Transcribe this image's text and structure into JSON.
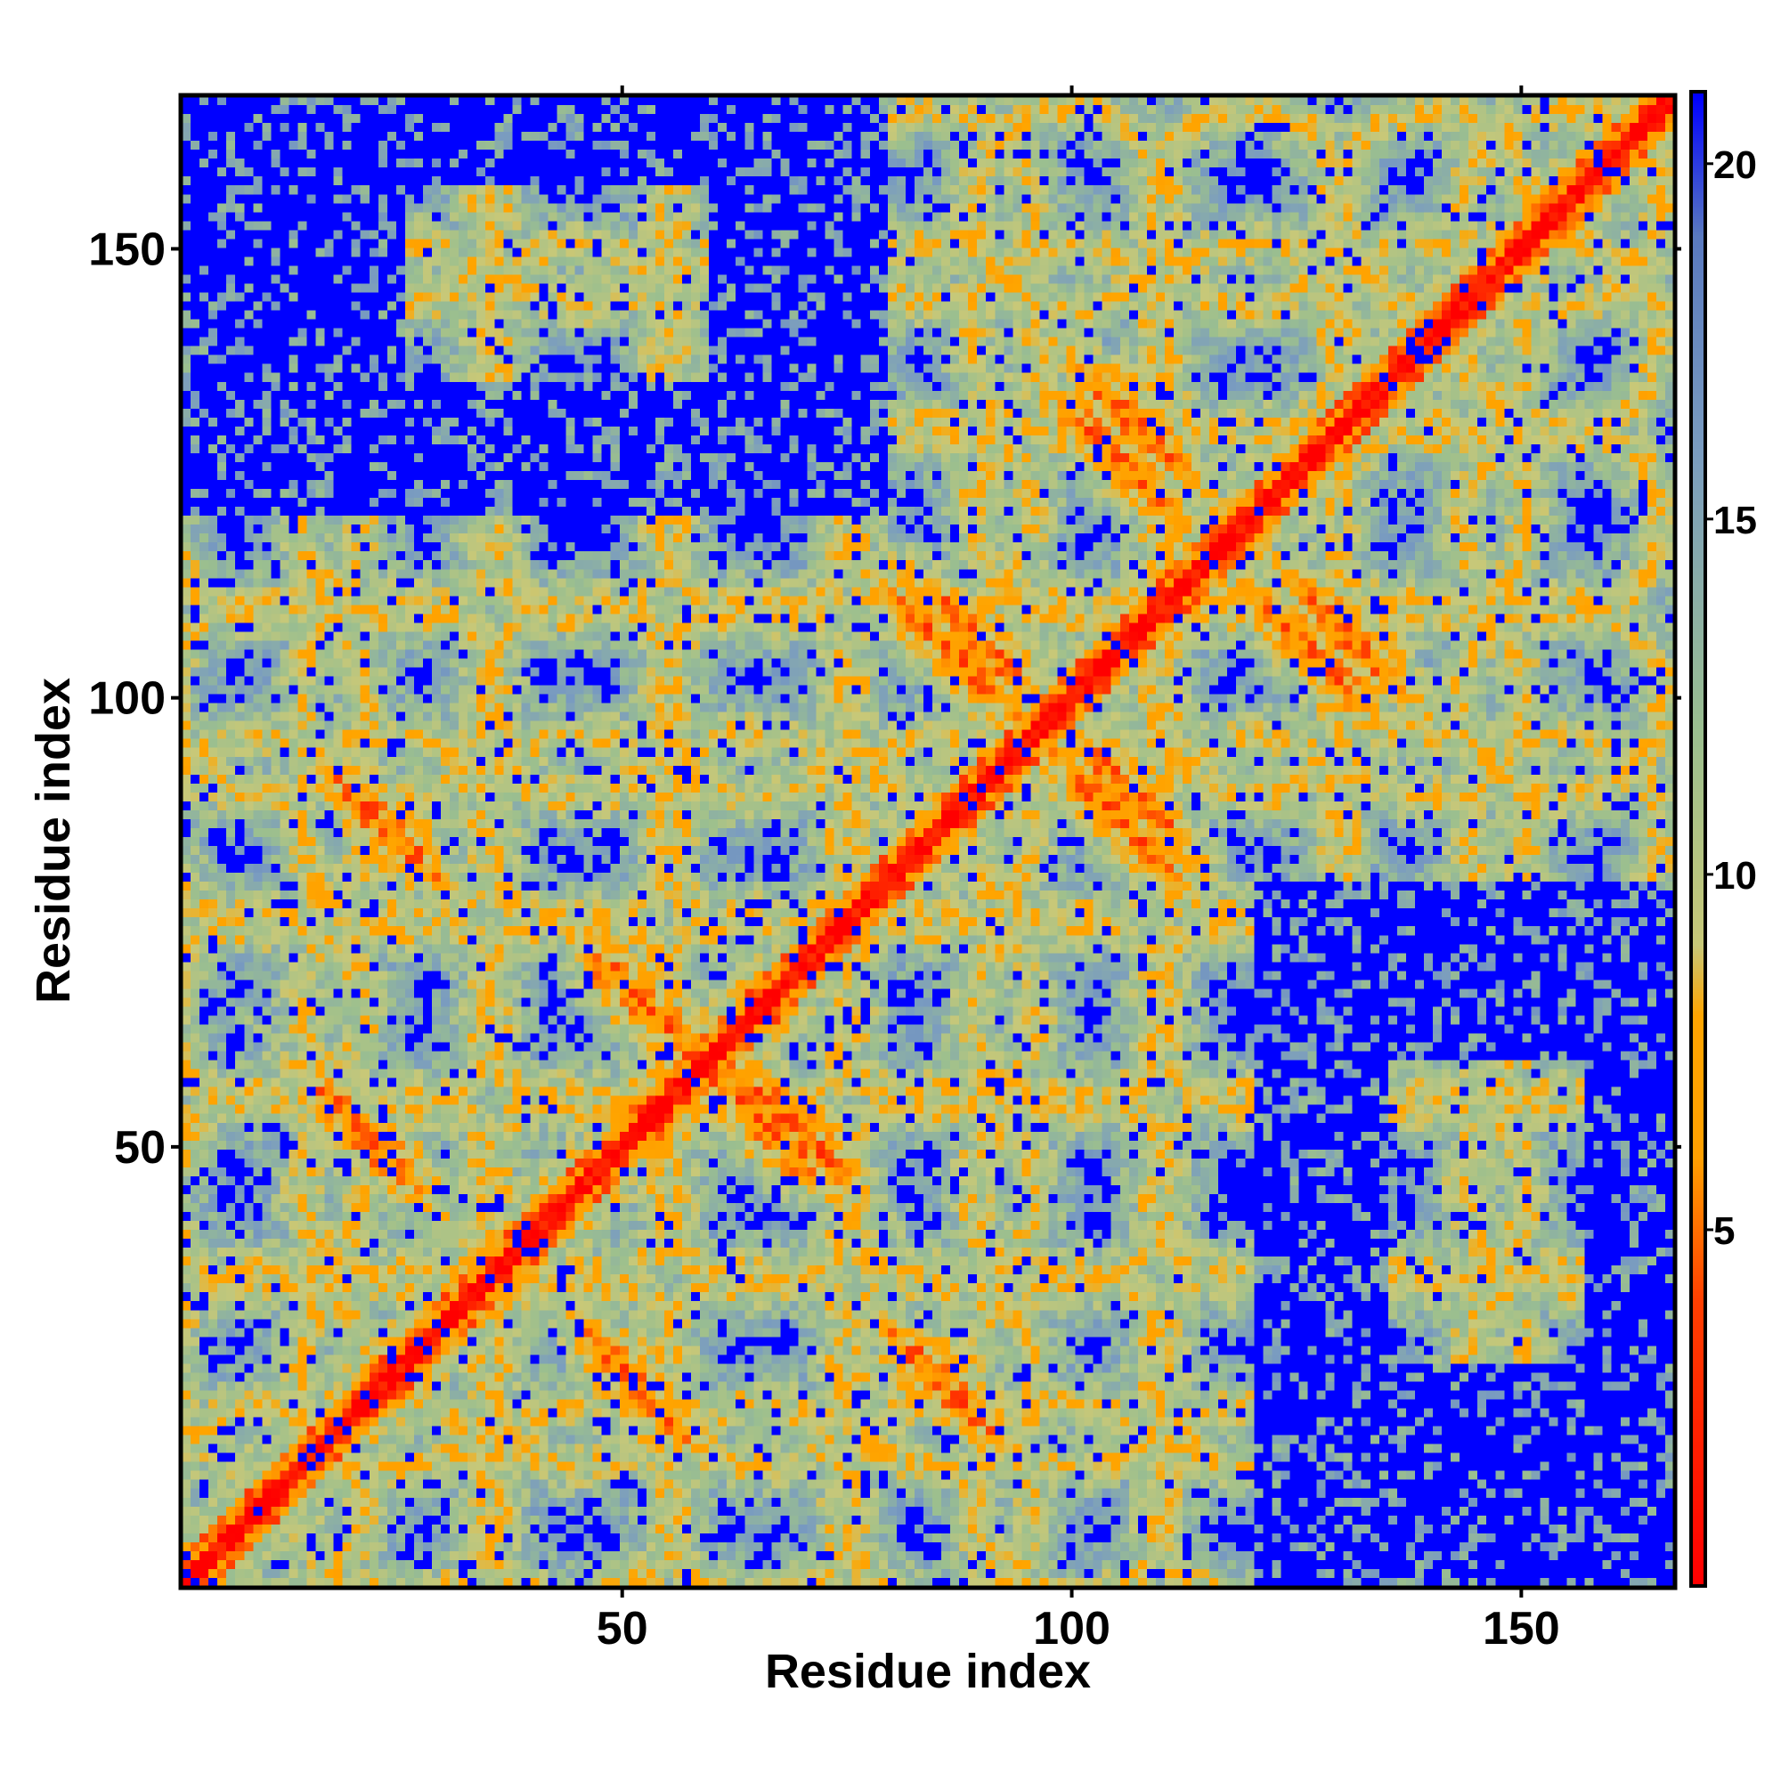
{
  "chart_data": {
    "type": "heatmap",
    "title": "",
    "xlabel": "Residue index",
    "ylabel": "Residue index",
    "xlim": [
      1,
      167
    ],
    "ylim": [
      1,
      167
    ],
    "xticks": [
      50,
      100,
      150
    ],
    "yticks": [
      50,
      100,
      150
    ],
    "colorbar": {
      "ticks": [
        5,
        10,
        15,
        20
      ],
      "range": [
        0,
        21
      ],
      "stops": [
        {
          "value": 0,
          "color": "#ff0000"
        },
        {
          "value": 4,
          "color": "#ff4000"
        },
        {
          "value": 6,
          "color": "#ffa000"
        },
        {
          "value": 8,
          "color": "#ffa500"
        },
        {
          "value": 9,
          "color": "#c8c878"
        },
        {
          "value": 12,
          "color": "#9bbf8f"
        },
        {
          "value": 16,
          "color": "#7a9cc0"
        },
        {
          "value": 19,
          "color": "#5a7ac0"
        },
        {
          "value": 21,
          "color": "#0000ff"
        }
      ]
    },
    "contact_bands": [
      {
        "i_start": 1,
        "i_end": 167,
        "j_start": 1,
        "j_end": 167,
        "kind": "diagonal"
      },
      {
        "i_start": 48,
        "i_end": 55,
        "j_start": 20,
        "j_end": 26,
        "kind": "antiparallel"
      },
      {
        "i_start": 18,
        "i_end": 24,
        "j_start": 48,
        "j_end": 54,
        "kind": "antiparallel"
      },
      {
        "i_start": 83,
        "i_end": 89,
        "j_start": 20,
        "j_end": 26,
        "kind": "antiparallel"
      },
      {
        "i_start": 20,
        "i_end": 26,
        "j_start": 83,
        "j_end": 89,
        "kind": "antiparallel"
      },
      {
        "i_start": 48,
        "i_end": 55,
        "j_start": 63,
        "j_end": 70,
        "kind": "antiparallel"
      },
      {
        "i_start": 63,
        "i_end": 70,
        "j_start": 48,
        "j_end": 55,
        "kind": "antiparallel"
      },
      {
        "i_start": 66,
        "i_end": 72,
        "j_start": 49,
        "j_end": 55,
        "kind": "antiparallel"
      },
      {
        "i_start": 84,
        "i_end": 90,
        "j_start": 102,
        "j_end": 108,
        "kind": "antiparallel"
      },
      {
        "i_start": 102,
        "i_end": 108,
        "j_start": 84,
        "j_end": 90,
        "kind": "antiparallel"
      },
      {
        "i_start": 104,
        "i_end": 110,
        "j_start": 86,
        "j_end": 92,
        "kind": "antiparallel"
      },
      {
        "i_start": 86,
        "i_end": 92,
        "j_start": 104,
        "j_end": 110,
        "kind": "antiparallel"
      },
      {
        "i_start": 124,
        "i_end": 130,
        "j_start": 102,
        "j_end": 108,
        "kind": "antiparallel"
      },
      {
        "i_start": 102,
        "i_end": 108,
        "j_start": 124,
        "j_end": 130,
        "kind": "antiparallel"
      },
      {
        "i_start": 104,
        "i_end": 110,
        "j_start": 128,
        "j_end": 134,
        "kind": "antiparallel"
      },
      {
        "i_start": 128,
        "i_end": 134,
        "j_start": 104,
        "j_end": 110,
        "kind": "antiparallel"
      }
    ]
  }
}
